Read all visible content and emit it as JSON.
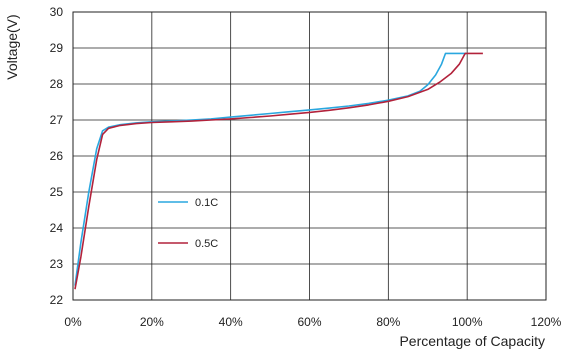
{
  "chart_data": {
    "type": "line",
    "xlabel": "Percentage of Capacity",
    "ylabel": "Voltage(V)",
    "xlim": [
      0,
      120
    ],
    "ylim": [
      22,
      30
    ],
    "x_ticks": [
      0,
      20,
      40,
      60,
      80,
      100,
      120
    ],
    "x_tick_labels": [
      "0%",
      "20%",
      "40%",
      "60%",
      "80%",
      "100%",
      "120%"
    ],
    "y_ticks": [
      22,
      23,
      24,
      25,
      26,
      27,
      28,
      29,
      30
    ],
    "y_tick_labels": [
      "22",
      "23",
      "24",
      "25",
      "26",
      "27",
      "28",
      "29",
      "30"
    ],
    "grid": true,
    "legend_position": "left-center",
    "series": [
      {
        "name": "0.1C",
        "color": "#2aa7df",
        "points": [
          [
            0.5,
            22.4
          ],
          [
            2,
            23.6
          ],
          [
            4,
            25.0
          ],
          [
            6,
            26.2
          ],
          [
            7.5,
            26.7
          ],
          [
            9,
            26.8
          ],
          [
            12,
            26.87
          ],
          [
            16,
            26.92
          ],
          [
            20,
            26.95
          ],
          [
            25,
            26.97
          ],
          [
            30,
            27.0
          ],
          [
            35,
            27.03
          ],
          [
            40,
            27.08
          ],
          [
            45,
            27.13
          ],
          [
            50,
            27.18
          ],
          [
            55,
            27.23
          ],
          [
            60,
            27.28
          ],
          [
            65,
            27.33
          ],
          [
            70,
            27.39
          ],
          [
            75,
            27.46
          ],
          [
            80,
            27.55
          ],
          [
            85,
            27.67
          ],
          [
            88,
            27.8
          ],
          [
            90,
            27.98
          ],
          [
            92,
            28.25
          ],
          [
            93.5,
            28.55
          ],
          [
            94.5,
            28.85
          ],
          [
            96,
            28.85
          ],
          [
            100,
            28.85
          ]
        ]
      },
      {
        "name": "0.5C",
        "color": "#b2223b",
        "points": [
          [
            0.5,
            22.3
          ],
          [
            2,
            23.2
          ],
          [
            4,
            24.6
          ],
          [
            6,
            25.9
          ],
          [
            7.5,
            26.6
          ],
          [
            9,
            26.77
          ],
          [
            12,
            26.85
          ],
          [
            16,
            26.9
          ],
          [
            20,
            26.93
          ],
          [
            25,
            26.95
          ],
          [
            30,
            26.97
          ],
          [
            35,
            27.0
          ],
          [
            40,
            27.03
          ],
          [
            45,
            27.07
          ],
          [
            50,
            27.11
          ],
          [
            55,
            27.16
          ],
          [
            60,
            27.21
          ],
          [
            65,
            27.27
          ],
          [
            70,
            27.34
          ],
          [
            75,
            27.42
          ],
          [
            80,
            27.52
          ],
          [
            85,
            27.65
          ],
          [
            90,
            27.85
          ],
          [
            93,
            28.05
          ],
          [
            96,
            28.3
          ],
          [
            98,
            28.55
          ],
          [
            99.5,
            28.85
          ],
          [
            102,
            28.85
          ],
          [
            104,
            28.85
          ]
        ]
      }
    ]
  }
}
